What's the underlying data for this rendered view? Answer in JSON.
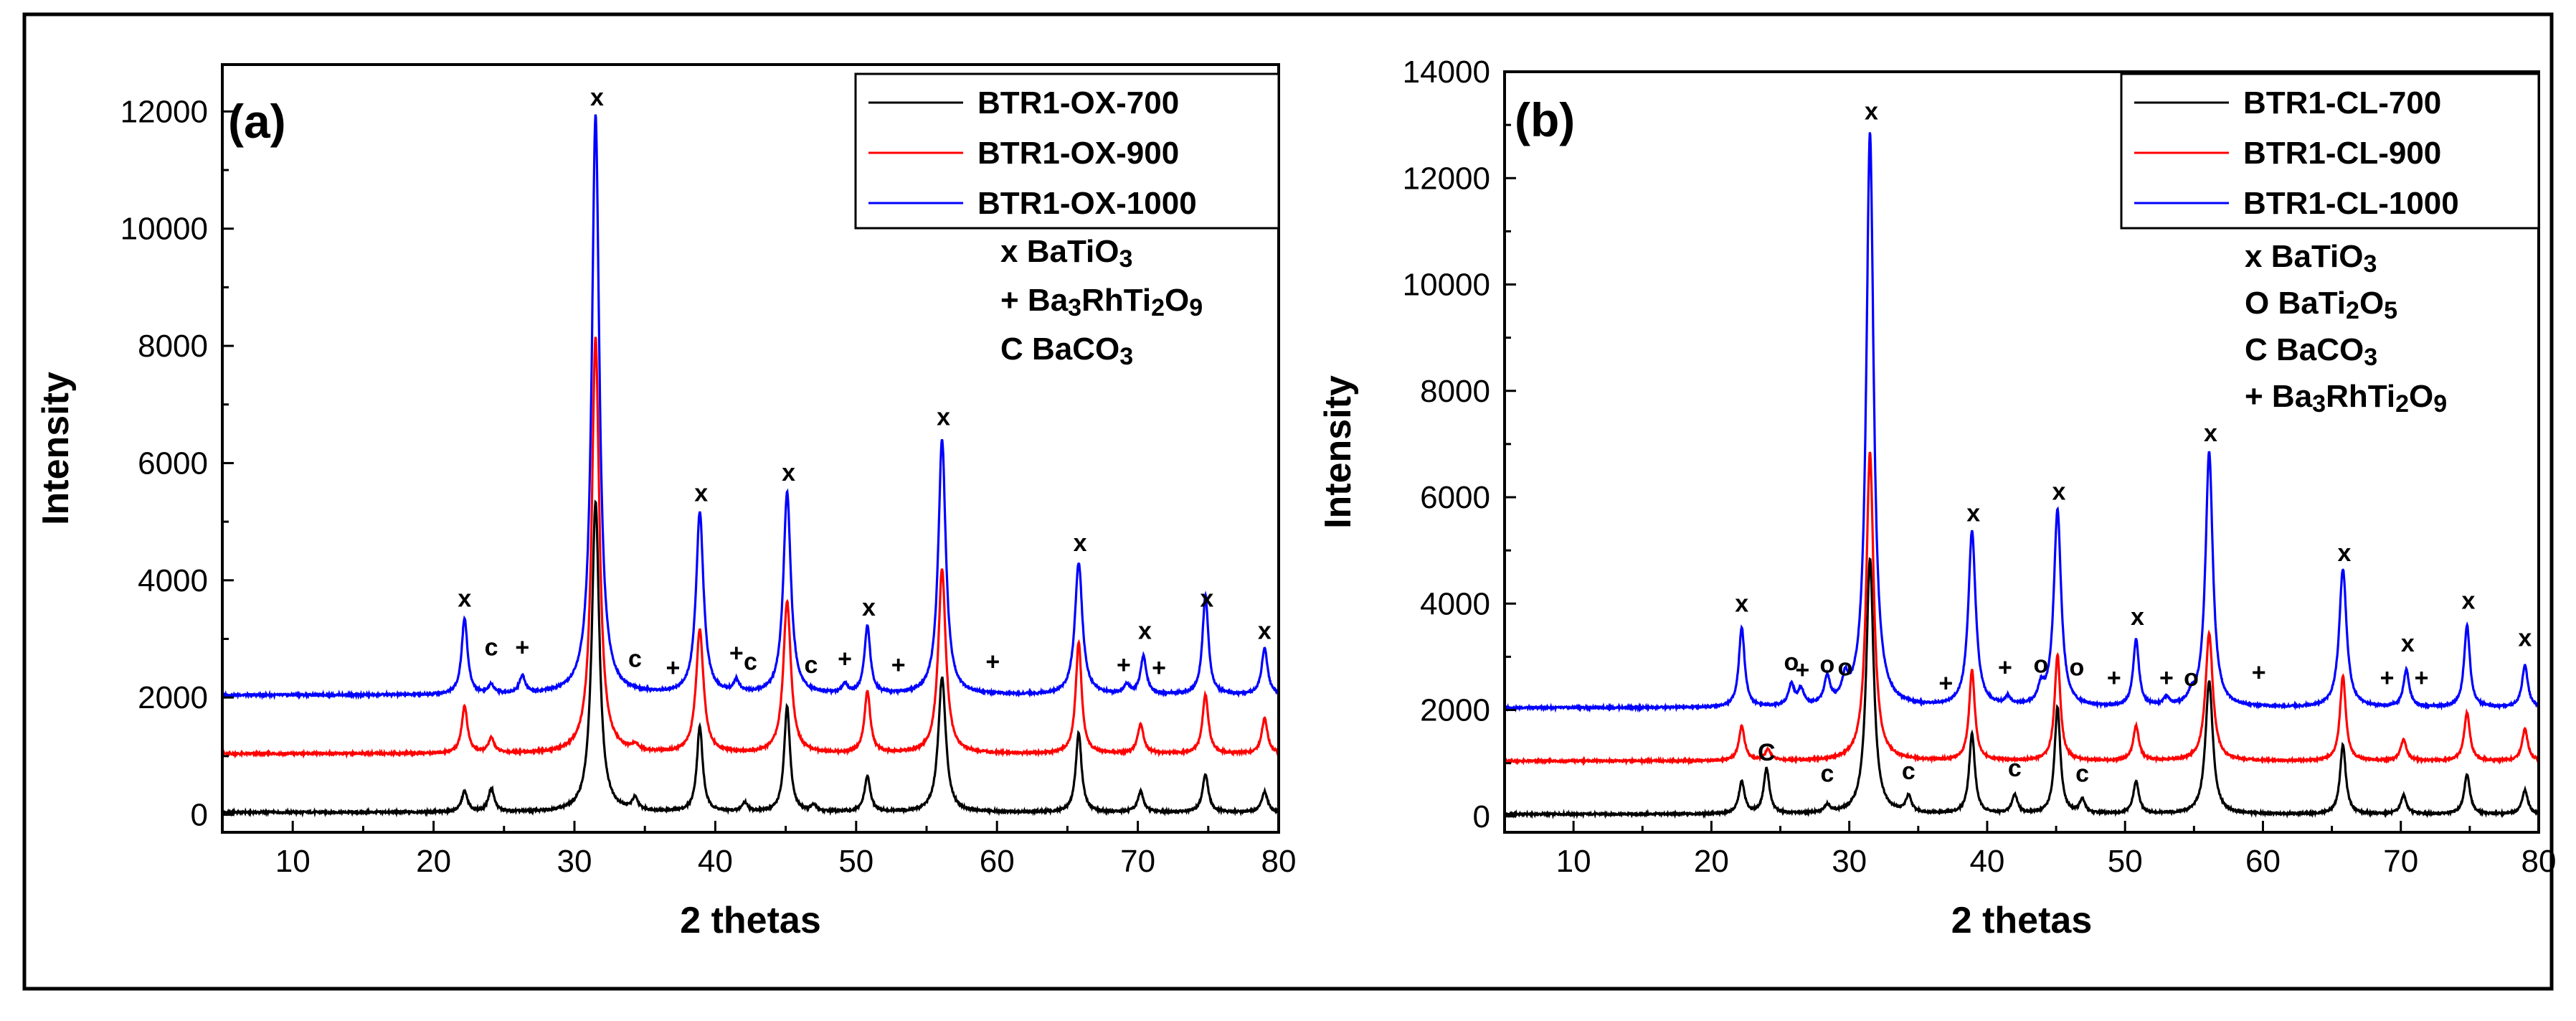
{
  "chart_data": [
    {
      "type": "line",
      "panel_label": "(a)",
      "xlabel": "2 thetas",
      "ylabel": "Intensity",
      "xlim": [
        5,
        80
      ],
      "ylim": [
        -300,
        12800
      ],
      "xticks": [
        10,
        20,
        30,
        40,
        50,
        60,
        70,
        80
      ],
      "yticks": [
        0,
        2000,
        4000,
        6000,
        8000,
        10000,
        12000
      ],
      "xtick_labels": [
        "10",
        "20",
        "30",
        "40",
        "50",
        "60",
        "70",
        "80"
      ],
      "ytick_labels": [
        "0",
        "2000",
        "4000",
        "6000",
        "8000",
        "10000",
        "12000"
      ],
      "grid": false,
      "legend_position": "top-right",
      "series": [
        {
          "name": "BTR1-OX-700",
          "color": "#000000",
          "baseline": 0,
          "peaks": [
            [
              22.2,
              350
            ],
            [
              24.1,
              400
            ],
            [
              31.5,
              5300
            ],
            [
              34.3,
              200
            ],
            [
              38.9,
              1450
            ],
            [
              42.1,
              150
            ],
            [
              45.1,
              1800
            ],
            [
              47.0,
              100
            ],
            [
              50.8,
              600
            ],
            [
              56.1,
              2300
            ],
            [
              65.8,
              1350
            ],
            [
              70.2,
              350
            ],
            [
              74.8,
              650
            ],
            [
              79.0,
              350
            ]
          ]
        },
        {
          "name": "BTR1-OX-900",
          "color": "#ff0000",
          "baseline": 1000,
          "peaks": [
            [
              22.2,
              800
            ],
            [
              24.1,
              250
            ],
            [
              31.5,
              7100
            ],
            [
              34.3,
              100
            ],
            [
              38.9,
              2100
            ],
            [
              45.1,
              2600
            ],
            [
              50.8,
              1050
            ],
            [
              56.1,
              3150
            ],
            [
              65.8,
              1900
            ],
            [
              70.2,
              500
            ],
            [
              74.8,
              1000
            ],
            [
              79.0,
              600
            ]
          ]
        },
        {
          "name": "BTR1-OX-1000",
          "color": "#0000ff",
          "baseline": 2000,
          "peaks": [
            [
              22.2,
              1300
            ],
            [
              24.1,
              150
            ],
            [
              26.3,
              300
            ],
            [
              31.5,
              9900
            ],
            [
              38.9,
              3100
            ],
            [
              41.5,
              200
            ],
            [
              45.1,
              3450
            ],
            [
              49.2,
              150
            ],
            [
              50.8,
              1150
            ],
            [
              56.1,
              4350
            ],
            [
              65.8,
              2250
            ],
            [
              69.2,
              150
            ],
            [
              70.4,
              650
            ],
            [
              74.8,
              1700
            ],
            [
              79.0,
              800
            ]
          ]
        }
      ],
      "legend": {
        "entries": [
          "BTR1-OX-700",
          "BTR1-OX-900",
          "BTR1-OX-1000"
        ],
        "phases": [
          {
            "symbol": "x",
            "formula": [
              [
                "BaTiO",
                ""
              ],
              [
                "3",
                "sub"
              ]
            ]
          },
          {
            "symbol": "+",
            "formula": [
              [
                "Ba",
                ""
              ],
              [
                "3",
                "sub"
              ],
              [
                "RhTi",
                ""
              ],
              [
                "2",
                "sub"
              ],
              [
                "O",
                ""
              ],
              [
                "9",
                "sub"
              ]
            ]
          },
          {
            "symbol": "C",
            "formula": [
              [
                "BaCO",
                ""
              ],
              [
                "3",
                "sub"
              ]
            ]
          }
        ]
      },
      "annotations": [
        {
          "text": "x",
          "x": 22.2,
          "y": 3550
        },
        {
          "text": "c",
          "x": 24.1,
          "y": 2720
        },
        {
          "text": "+",
          "x": 26.3,
          "y": 2720
        },
        {
          "text": "x",
          "x": 31.6,
          "y": 12100
        },
        {
          "text": "c",
          "x": 34.3,
          "y": 2520
        },
        {
          "text": "+",
          "x": 37.0,
          "y": 2370
        },
        {
          "text": "+",
          "x": 41.5,
          "y": 2620
        },
        {
          "text": "c",
          "x": 42.5,
          "y": 2470
        },
        {
          "text": "x",
          "x": 39.0,
          "y": 5350
        },
        {
          "text": "x",
          "x": 45.2,
          "y": 5700
        },
        {
          "text": "c",
          "x": 46.8,
          "y": 2420
        },
        {
          "text": "+",
          "x": 49.2,
          "y": 2520
        },
        {
          "text": "x",
          "x": 50.9,
          "y": 3400
        },
        {
          "text": "+",
          "x": 53.0,
          "y": 2420
        },
        {
          "text": "x",
          "x": 56.2,
          "y": 6650
        },
        {
          "text": "+",
          "x": 59.7,
          "y": 2470
        },
        {
          "text": "x",
          "x": 65.9,
          "y": 4500
        },
        {
          "text": "+",
          "x": 69.0,
          "y": 2420
        },
        {
          "text": "+",
          "x": 71.5,
          "y": 2370
        },
        {
          "text": "x",
          "x": 70.5,
          "y": 3000
        },
        {
          "text": "x",
          "x": 74.9,
          "y": 3550
        },
        {
          "text": "x",
          "x": 79.0,
          "y": 3000
        }
      ]
    },
    {
      "type": "line",
      "panel_label": "(b)",
      "xlabel": "2 thetas",
      "ylabel": "Intensity",
      "xlim": [
        5,
        80
      ],
      "ylim": [
        -300,
        14000
      ],
      "xticks": [
        10,
        20,
        30,
        40,
        50,
        60,
        70,
        80
      ],
      "yticks": [
        0,
        2000,
        4000,
        6000,
        8000,
        10000,
        12000,
        14000
      ],
      "xtick_labels": [
        "10",
        "20",
        "30",
        "40",
        "50",
        "60",
        "70",
        "80"
      ],
      "ytick_labels": [
        "0",
        "2000",
        "4000",
        "6000",
        "8000",
        "10000",
        "12000",
        "14000"
      ],
      "grid": false,
      "legend_position": "top-right",
      "series": [
        {
          "name": "BTR1-CL-700",
          "color": "#000000",
          "baseline": 0,
          "peaks": [
            [
              22.2,
              600
            ],
            [
              24.0,
              850
            ],
            [
              28.4,
              150
            ],
            [
              31.5,
              4800
            ],
            [
              34.3,
              300
            ],
            [
              38.9,
              1500
            ],
            [
              42.0,
              350
            ],
            [
              45.1,
              2000
            ],
            [
              46.9,
              250
            ],
            [
              50.8,
              600
            ],
            [
              56.1,
              2500
            ],
            [
              65.8,
              1300
            ],
            [
              70.2,
              350
            ],
            [
              74.8,
              750
            ],
            [
              79.0,
              450
            ]
          ]
        },
        {
          "name": "BTR1-CL-900",
          "color": "#ff0000",
          "baseline": 1000,
          "peaks": [
            [
              22.2,
              650
            ],
            [
              24.1,
              200
            ],
            [
              31.5,
              5800
            ],
            [
              38.9,
              1700
            ],
            [
              45.1,
              2000
            ],
            [
              50.8,
              650
            ],
            [
              56.1,
              2400
            ],
            [
              65.8,
              1600
            ],
            [
              70.2,
              400
            ],
            [
              74.8,
              900
            ],
            [
              79.0,
              600
            ]
          ]
        },
        {
          "name": "BTR1-CL-1000",
          "color": "#0000ff",
          "baseline": 2000,
          "peaks": [
            [
              22.2,
              1500
            ],
            [
              25.8,
              400
            ],
            [
              26.5,
              300
            ],
            [
              28.4,
              500
            ],
            [
              29.7,
              400
            ],
            [
              31.5,
              10800
            ],
            [
              38.9,
              3300
            ],
            [
              41.5,
              150
            ],
            [
              43.9,
              300
            ],
            [
              45.1,
              3700
            ],
            [
              50.8,
              1250
            ],
            [
              53.0,
              150
            ],
            [
              54.8,
              150
            ],
            [
              56.1,
              4800
            ],
            [
              65.8,
              2600
            ],
            [
              70.4,
              700
            ],
            [
              74.8,
              1550
            ],
            [
              79.0,
              800
            ]
          ]
        }
      ],
      "legend": {
        "entries": [
          "BTR1-CL-700",
          "BTR1-CL-900",
          "BTR1-CL-1000"
        ],
        "phases": [
          {
            "symbol": "x",
            "formula": [
              [
                "BaTiO",
                ""
              ],
              [
                "3",
                "sub"
              ]
            ]
          },
          {
            "symbol": "O",
            "formula": [
              [
                "BaTi",
                ""
              ],
              [
                "2",
                "sub"
              ],
              [
                "O",
                ""
              ],
              [
                "5",
                "sub"
              ]
            ]
          },
          {
            "symbol": "C",
            "formula": [
              [
                "BaCO",
                ""
              ],
              [
                "3",
                "sub"
              ]
            ]
          },
          {
            "symbol": "+",
            "formula": [
              [
                "Ba",
                ""
              ],
              [
                "3",
                "sub"
              ],
              [
                "RhTi",
                ""
              ],
              [
                "2",
                "sub"
              ],
              [
                "O",
                ""
              ],
              [
                "9",
                "sub"
              ]
            ]
          }
        ]
      },
      "annotations": [
        {
          "text": "x",
          "x": 22.2,
          "y": 3850
        },
        {
          "text": "C",
          "x": 24.0,
          "y": 1050
        },
        {
          "text": "c",
          "x": 28.4,
          "y": 650
        },
        {
          "text": "o",
          "x": 25.8,
          "y": 2750
        },
        {
          "text": "+",
          "x": 26.6,
          "y": 2600
        },
        {
          "text": "o",
          "x": 28.4,
          "y": 2700
        },
        {
          "text": "o",
          "x": 29.7,
          "y": 2650
        },
        {
          "text": "x",
          "x": 31.6,
          "y": 13100
        },
        {
          "text": "c",
          "x": 34.3,
          "y": 700
        },
        {
          "text": "+",
          "x": 37.0,
          "y": 2350
        },
        {
          "text": "x",
          "x": 39.0,
          "y": 5550
        },
        {
          "text": "+",
          "x": 41.3,
          "y": 2650
        },
        {
          "text": "c",
          "x": 42.0,
          "y": 750
        },
        {
          "text": "o",
          "x": 43.9,
          "y": 2700
        },
        {
          "text": "x",
          "x": 45.2,
          "y": 5950
        },
        {
          "text": "o",
          "x": 46.5,
          "y": 2650
        },
        {
          "text": "c",
          "x": 46.9,
          "y": 650
        },
        {
          "text": "+",
          "x": 49.2,
          "y": 2450
        },
        {
          "text": "x",
          "x": 50.9,
          "y": 3600
        },
        {
          "text": "+",
          "x": 53.0,
          "y": 2450
        },
        {
          "text": "o",
          "x": 54.8,
          "y": 2450
        },
        {
          "text": "x",
          "x": 56.2,
          "y": 7050
        },
        {
          "text": "+",
          "x": 59.7,
          "y": 2550
        },
        {
          "text": "x",
          "x": 65.9,
          "y": 4800
        },
        {
          "text": "+",
          "x": 69.0,
          "y": 2450
        },
        {
          "text": "x",
          "x": 70.5,
          "y": 3100
        },
        {
          "text": "+",
          "x": 71.5,
          "y": 2450
        },
        {
          "text": "x",
          "x": 74.9,
          "y": 3900
        },
        {
          "text": "x",
          "x": 79.0,
          "y": 3200
        }
      ]
    }
  ]
}
